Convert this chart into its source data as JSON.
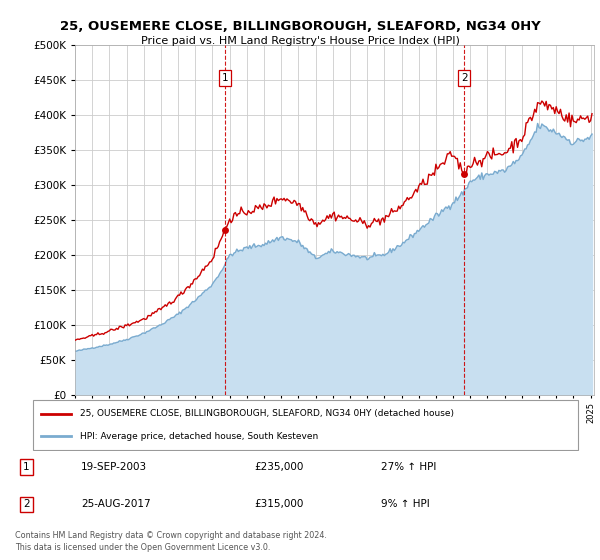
{
  "title1": "25, OUSEMERE CLOSE, BILLINGBOROUGH, SLEAFORD, NG34 0HY",
  "title2": "Price paid vs. HM Land Registry's House Price Index (HPI)",
  "legend_line1": "25, OUSEMERE CLOSE, BILLINGBOROUGH, SLEAFORD, NG34 0HY (detached house)",
  "legend_line2": "HPI: Average price, detached house, South Kesteven",
  "transaction1_date": "19-SEP-2003",
  "transaction1_price": "£235,000",
  "transaction1_hpi": "27% ↑ HPI",
  "transaction2_date": "25-AUG-2017",
  "transaction2_price": "£315,000",
  "transaction2_hpi": "9% ↑ HPI",
  "footer": "Contains HM Land Registry data © Crown copyright and database right 2024.\nThis data is licensed under the Open Government Licence v3.0.",
  "red_color": "#cc0000",
  "blue_color": "#7aabcf",
  "blue_fill_color": "#c8dff0",
  "vline_color": "#cc0000",
  "bg_color": "#ffffff",
  "grid_color": "#cccccc",
  "ylim": [
    0,
    500000
  ],
  "yticks": [
    0,
    50000,
    100000,
    150000,
    200000,
    250000,
    300000,
    350000,
    400000,
    450000,
    500000
  ],
  "transaction1_x": 2003.72,
  "transaction1_y": 235000,
  "transaction2_x": 2017.64,
  "transaction2_y": 315000,
  "xmin": 1995.0,
  "xmax": 2025.2
}
